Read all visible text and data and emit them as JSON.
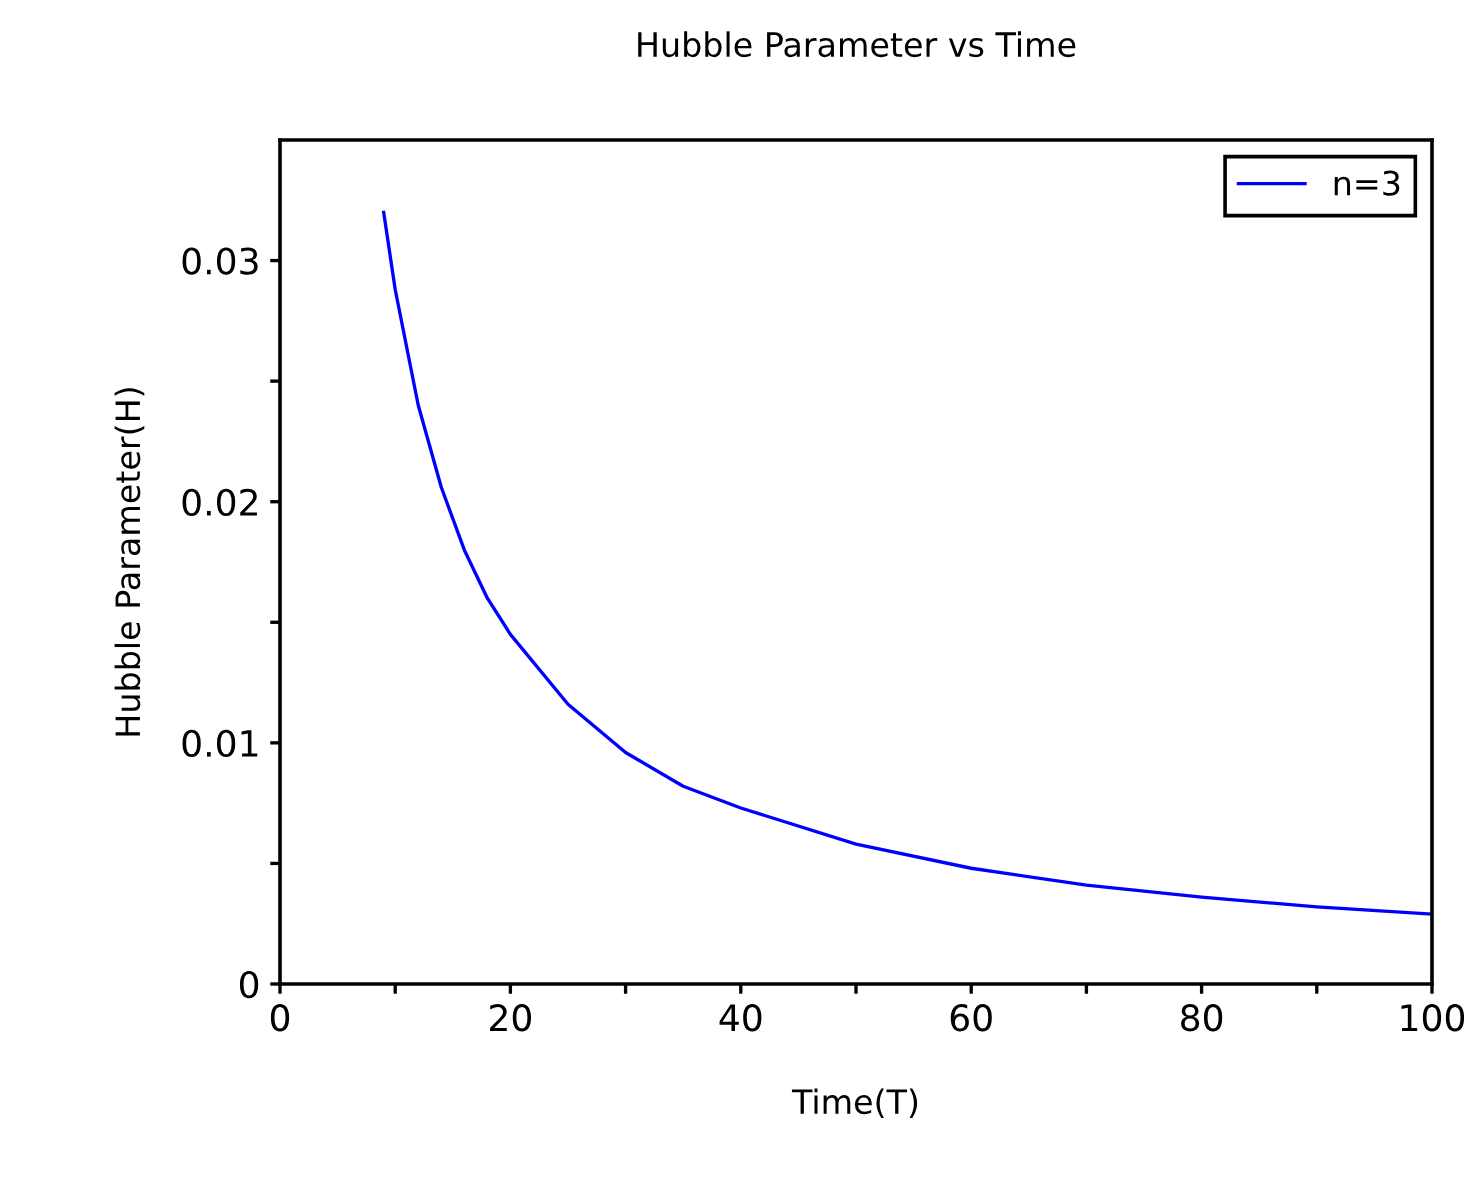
{
  "chart_data": {
    "type": "line",
    "title": "Hubble Parameter vs Time",
    "xlabel": "Time(T)",
    "ylabel": "Hubble Parameter(H)",
    "series": [
      {
        "name": "n=3",
        "color": "#0000ff",
        "x": [
          9,
          10,
          12,
          14,
          16,
          18,
          20,
          25,
          30,
          35,
          40,
          50,
          60,
          70,
          80,
          90,
          100
        ],
        "values": [
          0.032,
          0.0288,
          0.024,
          0.0206,
          0.018,
          0.016,
          0.0145,
          0.0116,
          0.0096,
          0.0082,
          0.0073,
          0.0058,
          0.0048,
          0.0041,
          0.0036,
          0.0032,
          0.0029
        ]
      }
    ],
    "xlim": [
      0,
      100
    ],
    "ylim": [
      0,
      0.035
    ],
    "xticks": [
      0,
      {
        "value": 10,
        "label": null
      },
      20,
      {
        "value": 30,
        "label": null
      },
      40,
      {
        "value": 50,
        "label": null
      },
      60,
      {
        "value": 70,
        "label": null
      },
      80,
      {
        "value": 90,
        "label": null
      },
      100
    ],
    "yticks": [
      0,
      {
        "value": 0.005,
        "label": null
      },
      0.01,
      {
        "value": 0.015,
        "label": null
      },
      0.02,
      {
        "value": 0.025,
        "label": null
      },
      0.03
    ],
    "grid": false,
    "legend": "top right",
    "marker": "none",
    "line_style": "solid"
  }
}
